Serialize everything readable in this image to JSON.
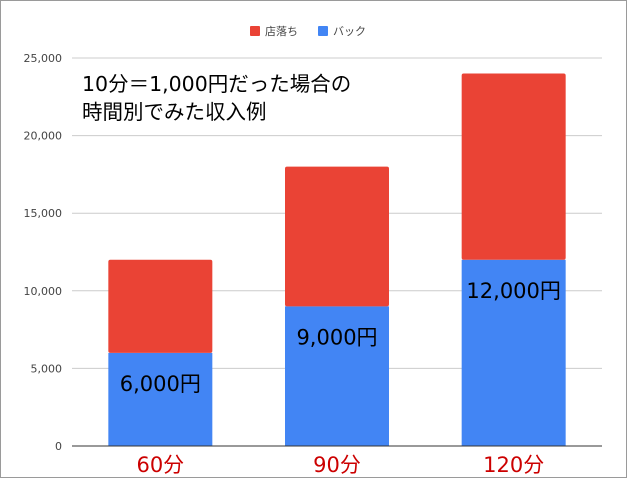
{
  "chart_data": {
    "type": "bar",
    "stacked": true,
    "categories": [
      "60分",
      "90分",
      "120分"
    ],
    "series": [
      {
        "name": "バック",
        "values": [
          6000,
          9000,
          12000
        ],
        "color": "#4285f4"
      },
      {
        "name": "店落ち",
        "values": [
          6000,
          9000,
          12000
        ],
        "color": "#ea4335"
      }
    ],
    "legend_order": [
      "店落ち",
      "バック"
    ],
    "legend_position": "top-center",
    "data_labels": [
      "6,000円",
      "9,000円",
      "12,000円"
    ],
    "annotation": [
      "10分＝1,000円だった場合の",
      "時間別でみた収入例"
    ],
    "yticks": [
      "0",
      "5,000",
      "10,000",
      "15,000",
      "20,000",
      "25,000"
    ],
    "ylim": [
      0,
      25000
    ],
    "grid": true,
    "category_label_color": "#cc0000"
  }
}
